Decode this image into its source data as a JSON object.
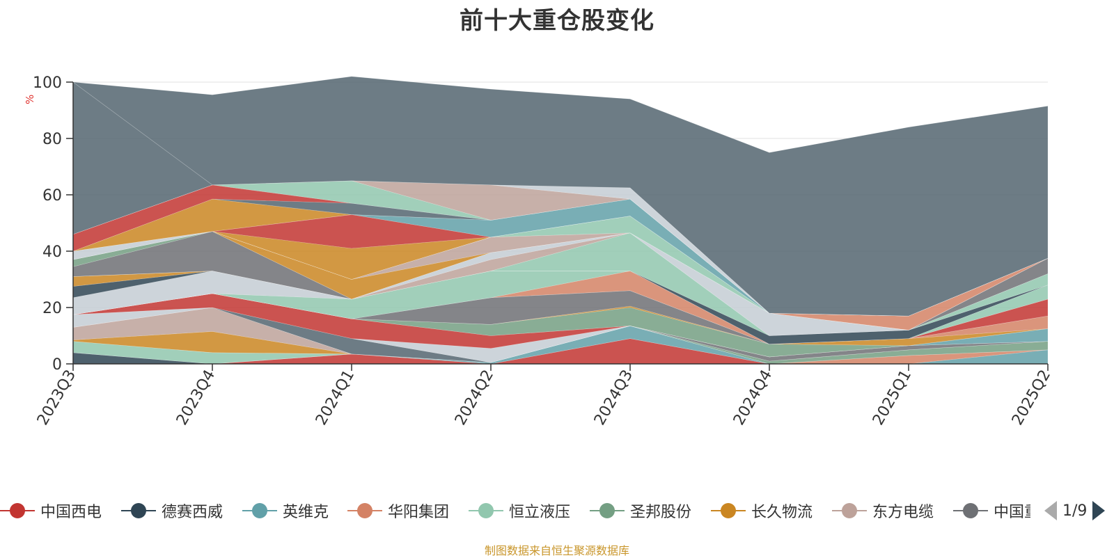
{
  "title": "前十大重仓股变化",
  "source_note": "制图数据来自恒生聚源数据库",
  "pager": {
    "text": "1/9"
  },
  "chart_data": {
    "type": "area",
    "stacked": true,
    "title": "前十大重仓股变化",
    "ylabel": "%",
    "ylim": [
      0,
      100
    ],
    "yticks": [
      0,
      20,
      40,
      60,
      80,
      100
    ],
    "grid": true,
    "legend_position": "bottom",
    "categories": [
      "2023Q3",
      "2023Q4",
      "2024Q1",
      "2024Q2",
      "2024Q3",
      "2024Q4",
      "2025Q1",
      "2025Q2"
    ],
    "series": [
      {
        "name": "中国西电",
        "color": "#c23531",
        "values": [
          0,
          0,
          3.5,
          0,
          9,
          0,
          0,
          0
        ]
      },
      {
        "name": "德赛西威",
        "color": "#2f4554",
        "values": [
          4,
          0,
          0,
          0,
          0,
          0,
          0,
          0
        ]
      },
      {
        "name": "英维克",
        "color": "#61a0a8",
        "values": [
          0,
          0,
          0,
          0.5,
          4.5,
          0,
          0,
          5
        ]
      },
      {
        "name": "华阳集团",
        "color": "#d48265",
        "values": [
          0,
          0,
          0,
          0,
          0,
          0,
          3,
          0
        ]
      },
      {
        "name": "恒立液压",
        "color": "#91c7ae",
        "values": [
          4,
          4,
          0,
          0,
          0,
          0,
          0,
          0
        ]
      },
      {
        "name": "圣邦股份",
        "color": "#749f83",
        "values": [
          0,
          0,
          0,
          0,
          0,
          1,
          2,
          3
        ]
      },
      {
        "name": "长久物流",
        "color": "#ca8622",
        "values": [
          0.5,
          7.5,
          0,
          0,
          0,
          0,
          0,
          0
        ]
      },
      {
        "name": "东方电缆",
        "color": "#bda29a",
        "values": [
          4.5,
          8.5,
          0,
          0,
          0,
          0,
          0,
          0
        ]
      },
      {
        "name": "中国重工",
        "color": "#6e7074",
        "values": [
          0,
          0,
          0,
          0,
          0,
          1.5,
          1.5,
          0
        ]
      },
      {
        "name": "",
        "color": "#546570",
        "values": [
          0,
          0,
          5.5,
          0,
          0,
          0,
          0,
          0
        ]
      },
      {
        "name": "",
        "color": "#c4ccd3",
        "values": [
          4.5,
          0,
          0,
          5,
          0,
          0,
          0,
          0
        ]
      },
      {
        "name": "",
        "color": "#c23531",
        "values": [
          0,
          5,
          7,
          4.5,
          0,
          0,
          0,
          0
        ]
      },
      {
        "name": "",
        "color": "#61a0a8",
        "values": [
          0,
          0,
          0,
          0,
          0,
          0,
          0,
          4.5
        ]
      },
      {
        "name": "",
        "color": "#749f83",
        "values": [
          0,
          0,
          0,
          4,
          6.5,
          4.5,
          0,
          0
        ]
      },
      {
        "name": "",
        "color": "#ca8622",
        "values": [
          0,
          0,
          0,
          0,
          0.5,
          0,
          2.5,
          0
        ]
      },
      {
        "name": "",
        "color": "#d48265",
        "values": [
          0,
          0,
          0,
          0,
          0,
          0,
          0,
          4.5
        ]
      },
      {
        "name": "",
        "color": "#6e7074",
        "values": [
          0,
          0,
          0,
          9.5,
          5.5,
          0,
          0,
          0
        ]
      },
      {
        "name": "",
        "color": "#c23531",
        "values": [
          0,
          0,
          0,
          0,
          0,
          0,
          0,
          6
        ]
      },
      {
        "name": "",
        "color": "#d48265",
        "values": [
          0,
          0,
          0,
          0,
          7,
          0,
          0,
          0
        ]
      },
      {
        "name": "",
        "color": "#91c7ae",
        "values": [
          0,
          0,
          7,
          9.5,
          0,
          0,
          0,
          5
        ]
      },
      {
        "name": "",
        "color": "#c4ccd3",
        "values": [
          6,
          8,
          0,
          0,
          0,
          0,
          0,
          0
        ]
      },
      {
        "name": "",
        "color": "#2f4554",
        "values": [
          4,
          0,
          0,
          0,
          0,
          3,
          3,
          0
        ]
      },
      {
        "name": "",
        "color": "#ca8622",
        "values": [
          3.5,
          0,
          0,
          0,
          0,
          0,
          0,
          0
        ]
      },
      {
        "name": "",
        "color": "#91c7ae",
        "values": [
          0,
          0,
          0,
          0,
          13.5,
          0,
          0,
          4
        ]
      },
      {
        "name": "",
        "color": "#bda29a",
        "values": [
          0,
          0,
          0,
          4,
          0,
          0,
          0,
          0
        ]
      },
      {
        "name": "",
        "color": "#c4ccd3",
        "values": [
          0,
          0,
          0,
          2.5,
          0,
          8,
          0,
          0
        ]
      },
      {
        "name": "",
        "color": "#6e7074",
        "values": [
          3.5,
          14,
          0,
          0,
          0,
          0,
          0,
          5.5
        ]
      },
      {
        "name": "",
        "color": "#749f83",
        "values": [
          2.5,
          0,
          0,
          0,
          0,
          0,
          0,
          0
        ]
      },
      {
        "name": "",
        "color": "#ca8622",
        "values": [
          0,
          0,
          7,
          0,
          0,
          0,
          0,
          0
        ]
      },
      {
        "name": "",
        "color": "#bda29a",
        "values": [
          0,
          0,
          0,
          5.5,
          0,
          0,
          0,
          0
        ]
      },
      {
        "name": "",
        "color": "#91c7ae",
        "values": [
          0,
          0,
          0,
          0,
          6,
          0,
          0,
          0
        ]
      },
      {
        "name": "",
        "color": "#d48265",
        "values": [
          0,
          0,
          0,
          0,
          0,
          0,
          5,
          0
        ]
      },
      {
        "name": "",
        "color": "#c4ccd3",
        "values": [
          3,
          0,
          0,
          0,
          0,
          0,
          0,
          0
        ]
      },
      {
        "name": "",
        "color": "#ca8622",
        "values": [
          0,
          0,
          11,
          0,
          0,
          0,
          0,
          0
        ]
      },
      {
        "name": "",
        "color": "#c23531",
        "values": [
          0,
          0,
          12,
          0,
          0,
          0,
          0,
          0
        ]
      },
      {
        "name": "",
        "color": "#61a0a8",
        "values": [
          0,
          0,
          0,
          6,
          6,
          0,
          0,
          0
        ]
      },
      {
        "name": "",
        "color": "#ca8622",
        "values": [
          0,
          11.5,
          0,
          0,
          0,
          0,
          0,
          0
        ]
      },
      {
        "name": "",
        "color": "#546570",
        "values": [
          0,
          0,
          4,
          0,
          0,
          0,
          0,
          0
        ]
      },
      {
        "name": "",
        "color": "#c23531",
        "values": [
          6,
          5,
          0,
          0,
          0,
          0,
          0,
          0
        ]
      },
      {
        "name": "",
        "color": "#91c7ae",
        "values": [
          0,
          0,
          8,
          0,
          0,
          0,
          0,
          0
        ]
      },
      {
        "name": "",
        "color": "#bda29a",
        "values": [
          0,
          0,
          0,
          12.5,
          0,
          0,
          0,
          0
        ]
      },
      {
        "name": "",
        "color": "#c4ccd3",
        "values": [
          0,
          0,
          0,
          0,
          4,
          0,
          0,
          0
        ]
      },
      {
        "name": "",
        "color": "#546570",
        "values": [
          54,
          0,
          0,
          0,
          0,
          0,
          0,
          0
        ]
      },
      {
        "name": "",
        "color": "#546570",
        "values": [
          0,
          32,
          37,
          34,
          31.5,
          57,
          67,
          54
        ]
      }
    ]
  }
}
